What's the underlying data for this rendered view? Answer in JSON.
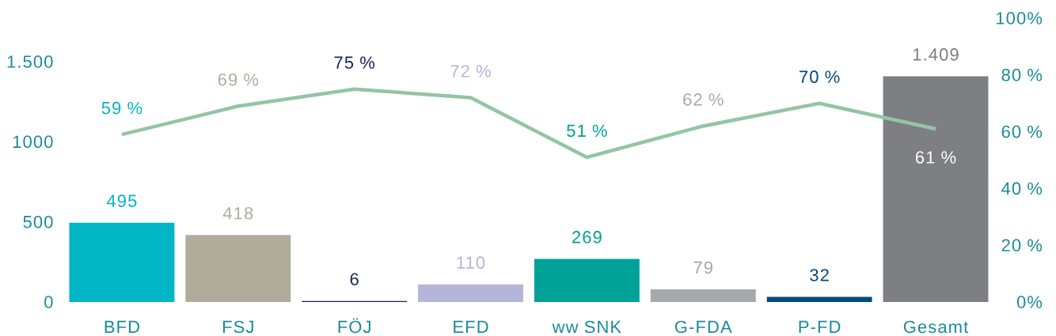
{
  "chart_data": {
    "type": "bar",
    "categories": [
      "BFD",
      "FSJ",
      "FÖJ",
      "EFD",
      "ww SNK",
      "G-FDA",
      "P-FD",
      "Gesamt"
    ],
    "series": [
      {
        "colors": [
          "#00b6c4",
          "#b1ab9c",
          "#1b2459",
          "#b3b6d8",
          "#00a298",
          "#a7a8ab",
          "#004a7e",
          "#7e7f83"
        ],
        "values": [
          495,
          418,
          6,
          110,
          269,
          79,
          32,
          1409
        ],
        "value_labels": [
          "495",
          "418",
          "6",
          "110",
          "269",
          "79",
          "32",
          "1.409"
        ]
      },
      {
        "type": "line",
        "axis": "y2",
        "color": "#93c5a5",
        "values": [
          59,
          69,
          75,
          72,
          51,
          62,
          70,
          61
        ],
        "value_labels": [
          "59 %",
          "69 %",
          "75 %",
          "72 %",
          "51 %",
          "62 %",
          "70 %",
          "61 %"
        ]
      }
    ],
    "ylim": [
      0,
      1500
    ],
    "yticks": [
      0,
      500,
      1000,
      {
        "value": 1500,
        "label": "1.500"
      }
    ],
    "y2lim": [
      0,
      100
    ],
    "y2ticks": [
      {
        "value": 0,
        "label": "0%"
      },
      {
        "value": 20,
        "label": "20 %"
      },
      {
        "value": 40,
        "label": "40 %"
      },
      {
        "value": 60,
        "label": "60 %"
      },
      {
        "value": 80,
        "label": "80 %"
      },
      {
        "value": 100,
        "label": "100%"
      }
    ],
    "marker": "none"
  }
}
